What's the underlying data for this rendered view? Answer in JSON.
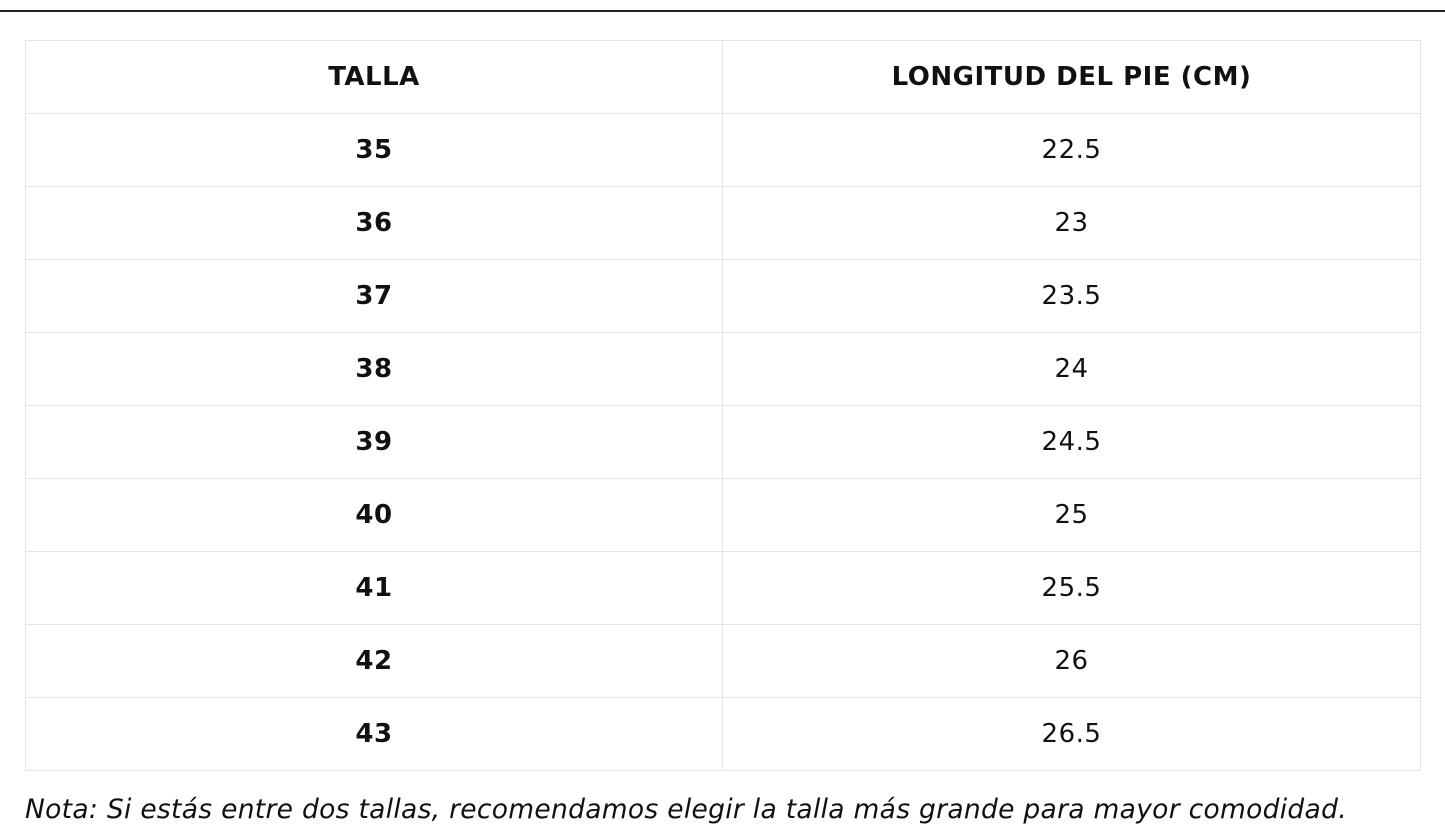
{
  "table": {
    "headers": [
      "TALLA",
      "LONGITUD DEL PIE (CM)"
    ],
    "rows": [
      {
        "size": "35",
        "length": "22.5"
      },
      {
        "size": "36",
        "length": "23"
      },
      {
        "size": "37",
        "length": "23.5"
      },
      {
        "size": "38",
        "length": "24"
      },
      {
        "size": "39",
        "length": "24.5"
      },
      {
        "size": "40",
        "length": "25"
      },
      {
        "size": "41",
        "length": "25.5"
      },
      {
        "size": "42",
        "length": "26"
      },
      {
        "size": "43",
        "length": "26.5"
      }
    ]
  },
  "note": "Nota: Si estás entre dos tallas, recomendamos elegir la talla más grande para mayor comodidad."
}
